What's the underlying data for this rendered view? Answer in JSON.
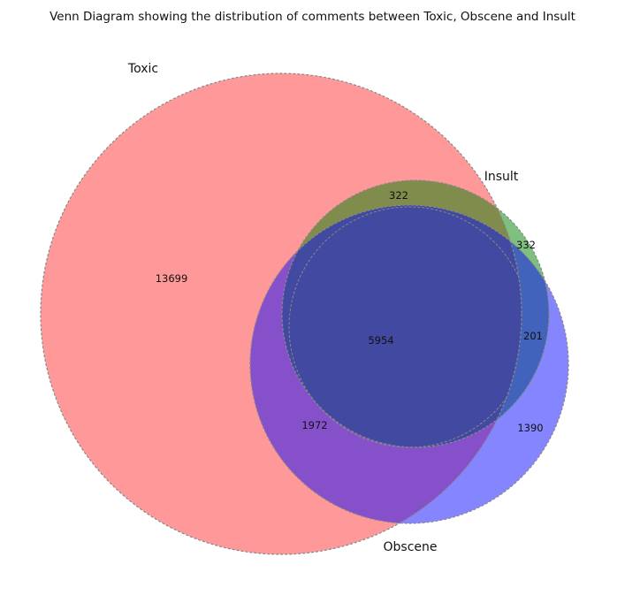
{
  "title": "Venn Diagram showing the distribution of comments between Toxic, Obscene and Insult",
  "sets": [
    {
      "id": "toxic",
      "label": "Toxic"
    },
    {
      "id": "insult",
      "label": "Insult"
    },
    {
      "id": "obscene",
      "label": "Obscene"
    }
  ],
  "regions": [
    {
      "id": "toxic-only",
      "value": "13699"
    },
    {
      "id": "toxic-insult",
      "value": "322"
    },
    {
      "id": "insult-only",
      "value": "332"
    },
    {
      "id": "all-three",
      "value": "5954"
    },
    {
      "id": "insult-obscene",
      "value": "201"
    },
    {
      "id": "toxic-obscene",
      "value": "1972"
    },
    {
      "id": "obscene-only",
      "value": "1390"
    }
  ],
  "colors": {
    "toxic": "#ff0000",
    "insult": "#008000",
    "obscene": "#0000ff",
    "outline": "#888888"
  }
}
